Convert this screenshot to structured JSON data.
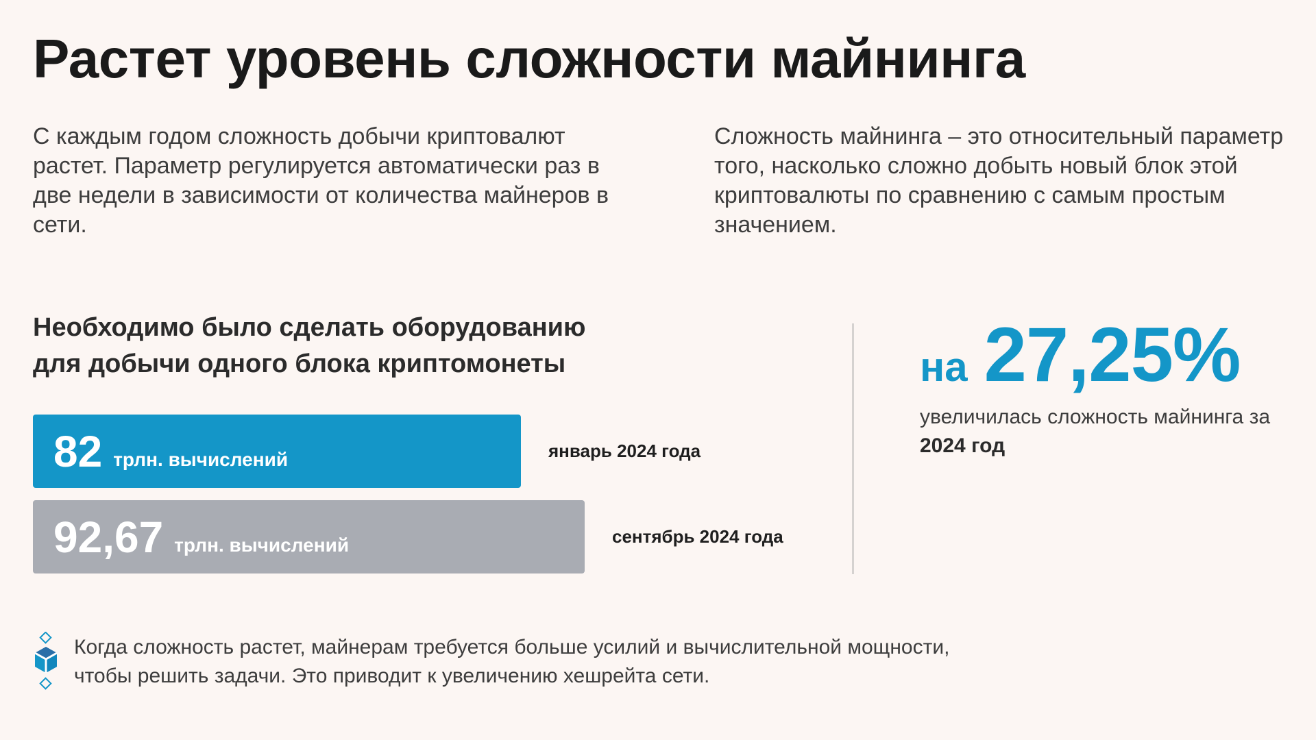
{
  "header": {
    "title": "Растет уровень сложности майнинга"
  },
  "intro": {
    "left": "С каждым годом сложность добычи криптовалют растет. Параметр регулируется автоматически раз в две недели в зависимости от количества майнеров в сети.",
    "right": "Сложность майнинга – это относительный параметр того, насколько сложно добыть новый блок этой криптовалюты по сравнению с самым простым значением."
  },
  "chart_data": {
    "type": "bar",
    "title": "Необходимо было сделать оборудованию для добычи одного блока криптомонеты",
    "orientation": "horizontal",
    "categories": [
      "январь 2024 года",
      "сентябрь 2024 года"
    ],
    "values": [
      82,
      92.67
    ],
    "value_labels": [
      "82",
      "92,67"
    ],
    "unit": "трлн. вычислений",
    "colors": [
      "#1496c8",
      "#a9acb3"
    ]
  },
  "stat": {
    "prefix": "на",
    "value": "27,25%",
    "caption_start": "увеличилась сложность майнинга за ",
    "caption_bold": "2024 год",
    "color": "#1496c8"
  },
  "footnote": {
    "icon": "cube-icon",
    "text": "Когда сложность растет, майнерам требуется больше усилий и вычислительной мощности, чтобы решить задачи. Это приводит к увеличению хешрейта сети."
  },
  "colors": {
    "background": "#fcf6f3",
    "accent": "#1496c8",
    "bar_secondary": "#a9acb3",
    "divider": "#d5d2d0"
  }
}
